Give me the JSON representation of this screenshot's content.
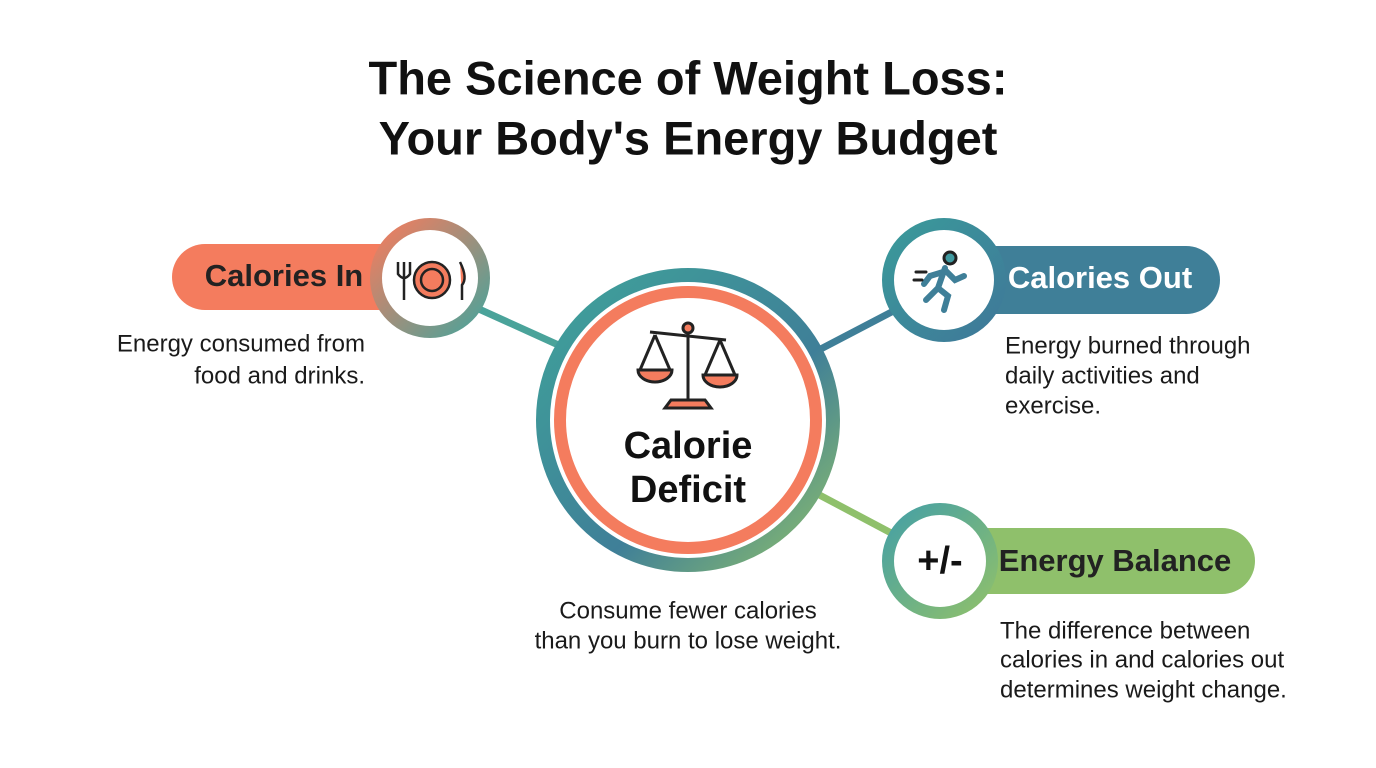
{
  "title": {
    "lines": [
      "The Science of Weight Loss:",
      "Your Body's Energy Budget"
    ]
  },
  "center": {
    "label_lines": [
      "Calorie",
      "Deficit"
    ],
    "description_lines": [
      "Consume fewer calories",
      "than you burn to lose weight."
    ]
  },
  "nodes": [
    {
      "label": "Calories In",
      "description_lines": [
        "Energy consumed from",
        "food and drinks."
      ]
    },
    {
      "label": "Calories Out",
      "description_lines": [
        "Energy burned through",
        "daily activities and",
        "exercise."
      ]
    },
    {
      "label": "Energy Balance",
      "icon_text": "+/-",
      "description_lines": [
        "The difference between",
        "calories in and calories out",
        "determines weight change."
      ]
    }
  ]
}
